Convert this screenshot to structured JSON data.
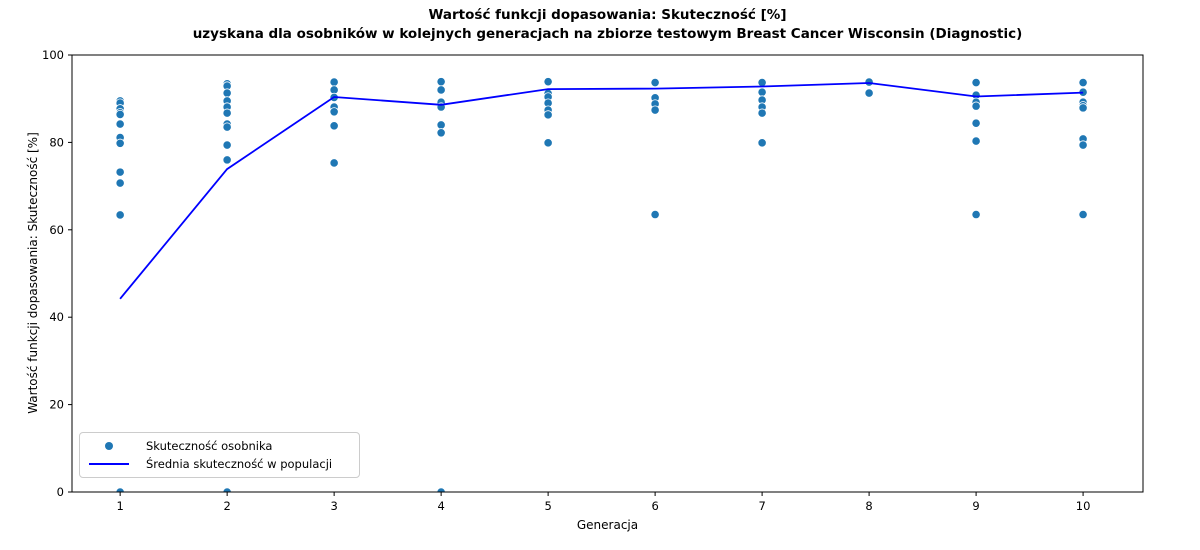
{
  "figure": {
    "title_line1": "Wartość funkcji dopasowania: Skuteczność [%]",
    "title_line2": "uzyskana dla osobników w kolejnych generacjach na zbiorze testowym Breast Cancer Wisconsin (Diagnostic)",
    "xlabel": "Generacja",
    "ylabel": "Wartość funkcji dopasowania: Skuteczność [%]"
  },
  "legend": {
    "scatter_label": "Skuteczność osobnika",
    "line_label": "Średnia skuteczność w populacji"
  },
  "colors": {
    "scatter": "#1f77b4",
    "scatter_edge": "#ffffff",
    "line": "#0000ff",
    "axis": "#000000",
    "text": "#000000",
    "legend_border": "#cccccc"
  },
  "chart_data": {
    "type": "scatter",
    "title": "Wartość funkcji dopasowania: Skuteczność [%] uzyskana dla osobników w kolejnych generacjach na zbiorze testowym Breast Cancer Wisconsin (Diagnostic)",
    "xlabel": "Generacja",
    "ylabel": "Wartość funkcji dopasowania: Skuteczność [%]",
    "xlim": [
      0.55,
      10.56
    ],
    "ylim": [
      0,
      100
    ],
    "x_ticks": [
      1,
      2,
      3,
      4,
      5,
      6,
      7,
      8,
      9,
      10
    ],
    "y_ticks": [
      0,
      20,
      40,
      60,
      80,
      100
    ],
    "grid": false,
    "legend_position": "lower-left",
    "series": [
      {
        "name": "Skuteczność osobnika",
        "type": "scatter",
        "points_by_generation": {
          "1": [
            89.5,
            89.0,
            87.7,
            86.8,
            86.4,
            84.2,
            81.1,
            79.8,
            73.2,
            70.7,
            63.4,
            0.0
          ],
          "2": [
            93.4,
            92.9,
            91.3,
            89.5,
            88.1,
            86.7,
            84.2,
            83.5,
            79.4,
            76.0,
            0.0
          ],
          "3": [
            93.8,
            92.0,
            90.3,
            88.1,
            87.0,
            83.8,
            75.3
          ],
          "4": [
            93.9,
            92.0,
            89.2,
            88.1,
            84.0,
            82.2,
            0.0
          ],
          "5": [
            93.9,
            91.2,
            90.4,
            89.0,
            87.4,
            86.3,
            79.9
          ],
          "6": [
            93.7,
            90.2,
            88.8,
            87.4,
            63.5
          ],
          "7": [
            93.7,
            91.5,
            89.7,
            88.1,
            86.7,
            79.9
          ],
          "8": [
            93.8,
            91.3
          ],
          "9": [
            93.7,
            90.8,
            89.2,
            88.3,
            84.4,
            80.3,
            63.5
          ],
          "10": [
            93.7,
            91.5,
            89.2,
            88.4,
            87.9,
            80.8,
            79.4,
            63.5
          ]
        }
      },
      {
        "name": "Średnia skuteczność w populacji",
        "type": "line",
        "x": [
          1,
          2,
          3,
          4,
          5,
          6,
          7,
          8,
          9,
          10
        ],
        "values": [
          44.2,
          73.9,
          90.4,
          88.6,
          92.2,
          92.3,
          92.8,
          93.6,
          90.5,
          91.4
        ]
      }
    ]
  }
}
